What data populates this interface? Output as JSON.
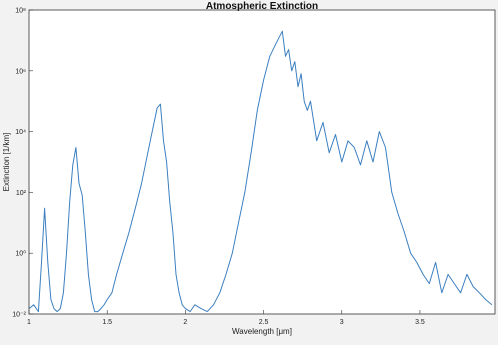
{
  "chart_data": {
    "type": "line",
    "title": "Atmospheric Extinction",
    "xlabel": "Wavelength [μm]",
    "ylabel": "Extinction [1/km]",
    "x_ticks": [
      1,
      1.5,
      2,
      2.5,
      3,
      3.5
    ],
    "x_tick_labels": [
      "1",
      "1.5",
      "2",
      "2.5",
      "3",
      "3.5"
    ],
    "xlim": [
      1,
      3.98
    ],
    "y_scale": "log",
    "y_ticks": [
      0.01,
      1,
      100,
      10000,
      1000000,
      100000000
    ],
    "y_tick_labels": [
      "10⁻²",
      "10⁰",
      "10²",
      "10⁴",
      "10⁶",
      "10⁸"
    ],
    "ylim": [
      0.01,
      100000000
    ],
    "grid": false,
    "series": [
      {
        "color": "#3b7fc1",
        "x": [
          1.0,
          1.03,
          1.06,
          1.08,
          1.1,
          1.12,
          1.14,
          1.16,
          1.18,
          1.2,
          1.22,
          1.24,
          1.26,
          1.28,
          1.3,
          1.32,
          1.34,
          1.36,
          1.38,
          1.4,
          1.42,
          1.44,
          1.46,
          1.48,
          1.5,
          1.53,
          1.56,
          1.6,
          1.64,
          1.68,
          1.72,
          1.76,
          1.8,
          1.82,
          1.84,
          1.86,
          1.88,
          1.9,
          1.92,
          1.94,
          1.96,
          1.98,
          2.0,
          2.03,
          2.06,
          2.1,
          2.14,
          2.18,
          2.22,
          2.26,
          2.3,
          2.34,
          2.38,
          2.42,
          2.46,
          2.5,
          2.54,
          2.58,
          2.62,
          2.64,
          2.66,
          2.68,
          2.7,
          2.72,
          2.74,
          2.76,
          2.78,
          2.8,
          2.84,
          2.88,
          2.92,
          2.96,
          3.0,
          3.04,
          3.08,
          3.12,
          3.16,
          3.2,
          3.24,
          3.28,
          3.32,
          3.36,
          3.4,
          3.44,
          3.48,
          3.52,
          3.56,
          3.6,
          3.64,
          3.68,
          3.72,
          3.76,
          3.8,
          3.84,
          3.88,
          3.92,
          3.96
        ],
        "y": [
          0.015,
          0.02,
          0.012,
          0.5,
          30,
          0.5,
          0.03,
          0.015,
          0.012,
          0.015,
          0.05,
          1,
          50,
          800,
          3000,
          200,
          80,
          5,
          0.2,
          0.03,
          0.012,
          0.012,
          0.015,
          0.02,
          0.03,
          0.05,
          0.2,
          1,
          5,
          30,
          200,
          2000,
          20000,
          60000,
          80000,
          5000,
          1000,
          50,
          5,
          0.2,
          0.05,
          0.02,
          0.015,
          0.012,
          0.02,
          0.015,
          0.012,
          0.02,
          0.05,
          0.2,
          1,
          10,
          100,
          2000,
          50000,
          500000,
          3000000,
          8000000,
          20000000,
          3000000,
          5000000,
          1000000,
          2000000,
          300000,
          800000,
          100000,
          50000,
          100000,
          5000,
          20000,
          2000,
          8000,
          1000,
          5000,
          3000,
          800,
          5000,
          1000,
          10000,
          3000,
          100,
          20,
          5,
          1,
          0.5,
          0.2,
          0.1,
          0.5,
          0.05,
          0.2,
          0.1,
          0.05,
          0.2,
          0.08,
          0.05,
          0.03,
          0.02
        ]
      }
    ]
  }
}
